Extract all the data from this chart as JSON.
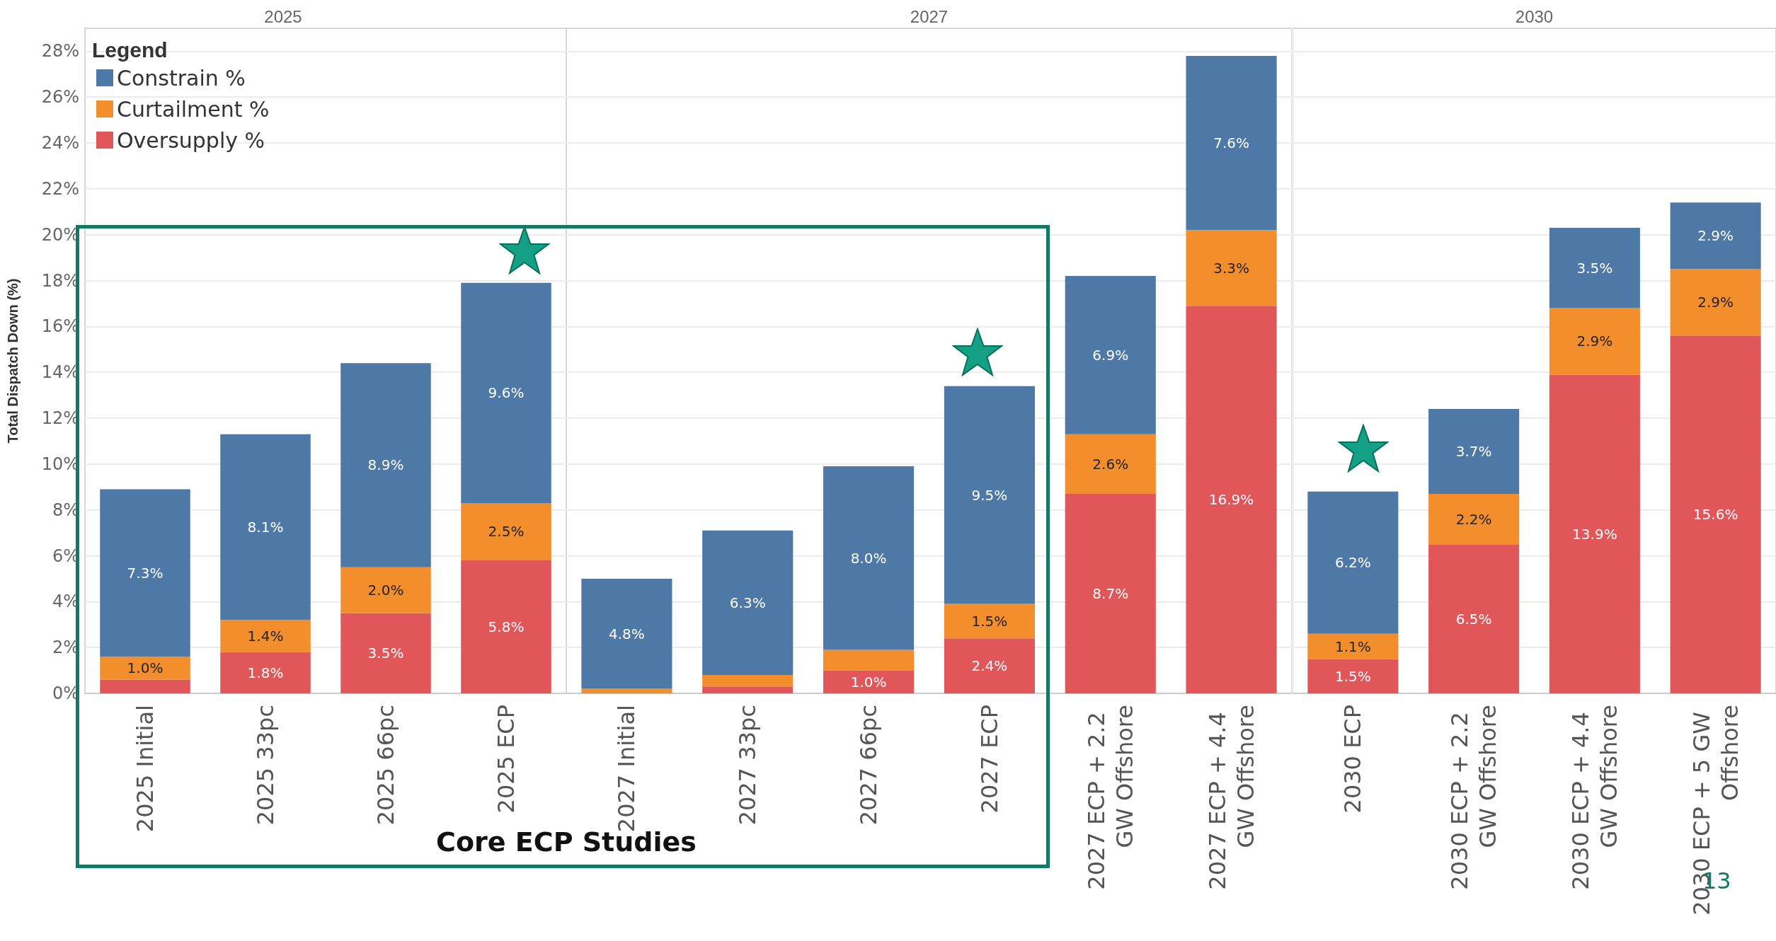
{
  "chart_data": [
    {
      "type": "bar",
      "title": "2025",
      "ylabel": "Total Dispatch Down (%)",
      "legend_title": "Legend",
      "legend": "top left",
      "grid": "y",
      "stacked": true,
      "categories": [
        "2025 Initial",
        "2025 33pc",
        "2025 66pc",
        "2025 ECP"
      ],
      "ylim": [
        0,
        29
      ],
      "yticks": [
        {
          "value": 0,
          "label": "0%"
        },
        {
          "value": 2,
          "label": "2%"
        },
        {
          "value": 4,
          "label": "4%"
        },
        {
          "value": 6,
          "label": "6%"
        },
        {
          "value": 8,
          "label": "8%"
        },
        {
          "value": 10,
          "label": "10%"
        },
        {
          "value": 12,
          "label": "12%"
        },
        {
          "value": 14,
          "label": "14%"
        },
        {
          "value": 16,
          "label": "16%"
        },
        {
          "value": 18,
          "label": "18%"
        },
        {
          "value": 20,
          "label": "20%"
        },
        {
          "value": 22,
          "label": "22%"
        },
        {
          "value": 24,
          "label": "24%"
        },
        {
          "value": 26,
          "label": "26%"
        },
        {
          "value": 28,
          "label": "28%"
        }
      ],
      "series": [
        {
          "name": "Oversupply %",
          "color": "#e15759",
          "values": [
            0.6,
            1.8,
            3.5,
            5.8
          ],
          "value_labels": [
            null,
            "1.8%",
            "3.5%",
            "5.8%"
          ]
        },
        {
          "name": "Curtailment %",
          "color": "#f28e2b",
          "values": [
            1.0,
            1.4,
            2.0,
            2.5
          ],
          "value_labels": [
            "1.0%",
            "1.4%",
            "2.0%",
            "2.5%"
          ]
        },
        {
          "name": "Constrain %",
          "color": "#4e79a7",
          "values": [
            7.3,
            8.1,
            8.9,
            9.6
          ],
          "value_labels": [
            "7.3%",
            "8.1%",
            "8.9%",
            "9.6%"
          ]
        }
      ],
      "annotations": [
        "Core ECP Studies"
      ]
    },
    {
      "type": "bar",
      "title": "2027",
      "grid": "y",
      "stacked": true,
      "tick_labels": "x",
      "categories": [
        "2027 Initial",
        "2027 33pc",
        "2027 66pc",
        "2027 ECP",
        "2027 ECP + 2.2 GW Offshore",
        "2027 ECP + 4.4 GW Offshore"
      ],
      "ylim": [
        0,
        29
      ],
      "yticks": [
        0,
        2,
        4,
        6,
        8,
        10,
        12,
        14,
        16,
        18,
        20,
        22,
        24,
        26,
        28
      ],
      "series": [
        {
          "color": "#e15759",
          "values": [
            0,
            0.3,
            1.0,
            2.4,
            8.7,
            16.9
          ],
          "value_labels": [
            null,
            null,
            "1.0%",
            "2.4%",
            "8.7%",
            "16.9%"
          ]
        },
        {
          "color": "#f28e2b",
          "values": [
            0.2,
            0.5,
            0.9,
            1.5,
            2.6,
            3.3
          ],
          "value_labels": [
            null,
            null,
            null,
            "1.5%",
            "2.6%",
            "3.3%"
          ]
        },
        {
          "color": "#4e79a7",
          "values": [
            4.8,
            6.3,
            8.0,
            9.5,
            6.9,
            7.6
          ],
          "value_labels": [
            "4.8%",
            "6.3%",
            "8.0%",
            "9.5%",
            "6.9%",
            "7.6%"
          ]
        }
      ]
    },
    {
      "type": "bar",
      "title": "2030",
      "grid": "y",
      "stacked": true,
      "tick_labels": "x",
      "categories": [
        "2030 ECP",
        "2030 ECP + 2.2 GW Offshore",
        "2030 ECP + 4.4 GW Offshore",
        "2030 ECP + 5 GW Offshore"
      ],
      "ylim": [
        0,
        29
      ],
      "yticks": [
        0,
        2,
        4,
        6,
        8,
        10,
        12,
        14,
        16,
        18,
        20,
        22,
        24,
        26,
        28
      ],
      "series": [
        {
          "color": "#e15759",
          "values": [
            1.5,
            6.5,
            13.9,
            15.6
          ],
          "value_labels": [
            "1.5%",
            "6.5%",
            "13.9%",
            "15.6%"
          ]
        },
        {
          "color": "#f28e2b",
          "values": [
            1.1,
            2.2,
            2.9,
            2.9
          ],
          "value_labels": [
            "1.1%",
            "2.2%",
            "2.9%",
            "2.9%"
          ]
        },
        {
          "color": "#4e79a7",
          "values": [
            6.2,
            3.7,
            3.5,
            2.9
          ],
          "value_labels": [
            "6.2%",
            "3.7%",
            "3.5%",
            "2.9%"
          ]
        }
      ],
      "annotations": [
        "13"
      ]
    }
  ]
}
